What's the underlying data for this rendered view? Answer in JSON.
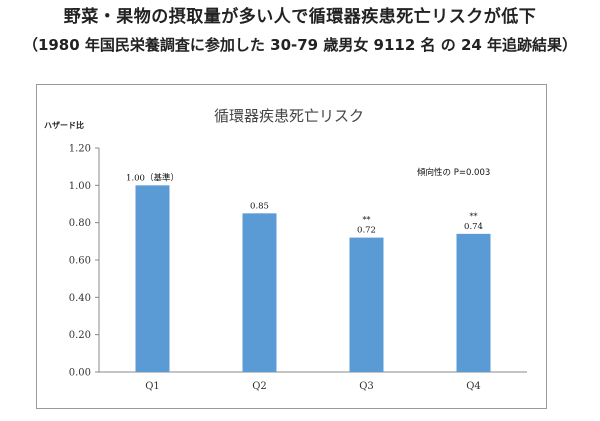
{
  "header": {
    "title": "野菜・果物の摂取量が多い人で循環器疾患死亡リスクが低下",
    "subtitle": "（1980 年国民栄養調査に参加した 30-79 歳男女 9112 名 の 24 年追跡結果）"
  },
  "chart_data": {
    "type": "bar",
    "title": "循環器疾患死亡リスク",
    "ylabel": "ハザード比",
    "xlabel": "",
    "categories": [
      "Q1",
      "Q2",
      "Q3",
      "Q4"
    ],
    "values": [
      1.0,
      0.85,
      0.72,
      0.74
    ],
    "data_labels": [
      "1.00（基準）",
      "0.85",
      "0.72",
      "0.74"
    ],
    "significance": [
      "",
      "",
      "**",
      "**"
    ],
    "ylim": [
      0,
      1.2
    ],
    "yticks": [
      "0.00",
      "0.20",
      "0.40",
      "0.60",
      "0.80",
      "1.00",
      "1.20"
    ],
    "annotation": "傾向性の P=0.003",
    "bar_color": "#5b9bd5",
    "grid": false,
    "legend": "none"
  }
}
